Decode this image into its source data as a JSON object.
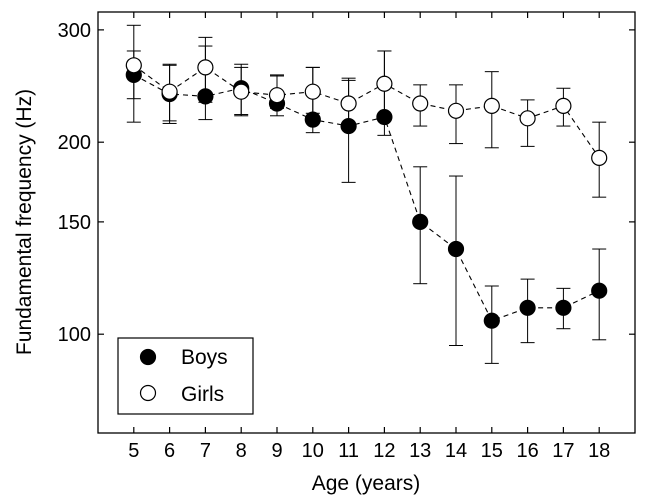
{
  "chart_data": {
    "type": "scatter",
    "xlabel": "Age (years)",
    "ylabel": "Fundamental frequency (Hz)",
    "y_scale": "log",
    "xlim": [
      4,
      19
    ],
    "ylim": [
      70,
      320
    ],
    "grid": false,
    "legend_position": "bottom-left",
    "x_ticks": [
      5,
      6,
      7,
      8,
      9,
      10,
      11,
      12,
      13,
      14,
      15,
      16,
      17,
      18
    ],
    "x_tick_labels": [
      "5",
      "6",
      "7",
      "8",
      "9",
      "10",
      "11",
      "12",
      "13",
      "14",
      "15",
      "16",
      "17",
      "18"
    ],
    "y_ticks": [
      100,
      150,
      200,
      300
    ],
    "y_tick_labels": [
      "100",
      "150",
      "200",
      "300"
    ],
    "series": [
      {
        "name": "Boys",
        "marker": "filled-circle",
        "color": "#000000",
        "line_style": "dashed",
        "x": [
          5,
          6,
          7,
          8,
          9,
          10,
          11,
          12,
          13,
          14,
          15,
          16,
          17,
          18
        ],
        "y": [
          255,
          238,
          236,
          243,
          230,
          217,
          212,
          219,
          150,
          136,
          105,
          110,
          110,
          117
        ],
        "err_low": [
          215,
          214,
          217,
          220,
          220,
          207,
          173,
          205,
          120,
          96,
          90,
          97,
          102,
          98
        ],
        "err_high": [
          305,
          265,
          283,
          265,
          255,
          262,
          252,
          278,
          183,
          177,
          119,
          122,
          118,
          136
        ]
      },
      {
        "name": "Girls",
        "marker": "open-circle",
        "color": "#000000",
        "line_style": "dashed",
        "x": [
          5,
          6,
          7,
          8,
          9,
          10,
          11,
          12,
          13,
          14,
          15,
          16,
          17,
          18
        ],
        "y": [
          264,
          240,
          262,
          240,
          237,
          240,
          230,
          247,
          230,
          224,
          228,
          218,
          228,
          189
        ],
        "err_low": [
          234,
          216,
          231,
          221,
          226,
          222,
          212,
          220,
          212,
          199,
          196,
          197,
          212,
          164
        ],
        "err_high": [
          278,
          264,
          292,
          262,
          254,
          262,
          250,
          278,
          246,
          246,
          258,
          233,
          243,
          215
        ]
      }
    ]
  }
}
